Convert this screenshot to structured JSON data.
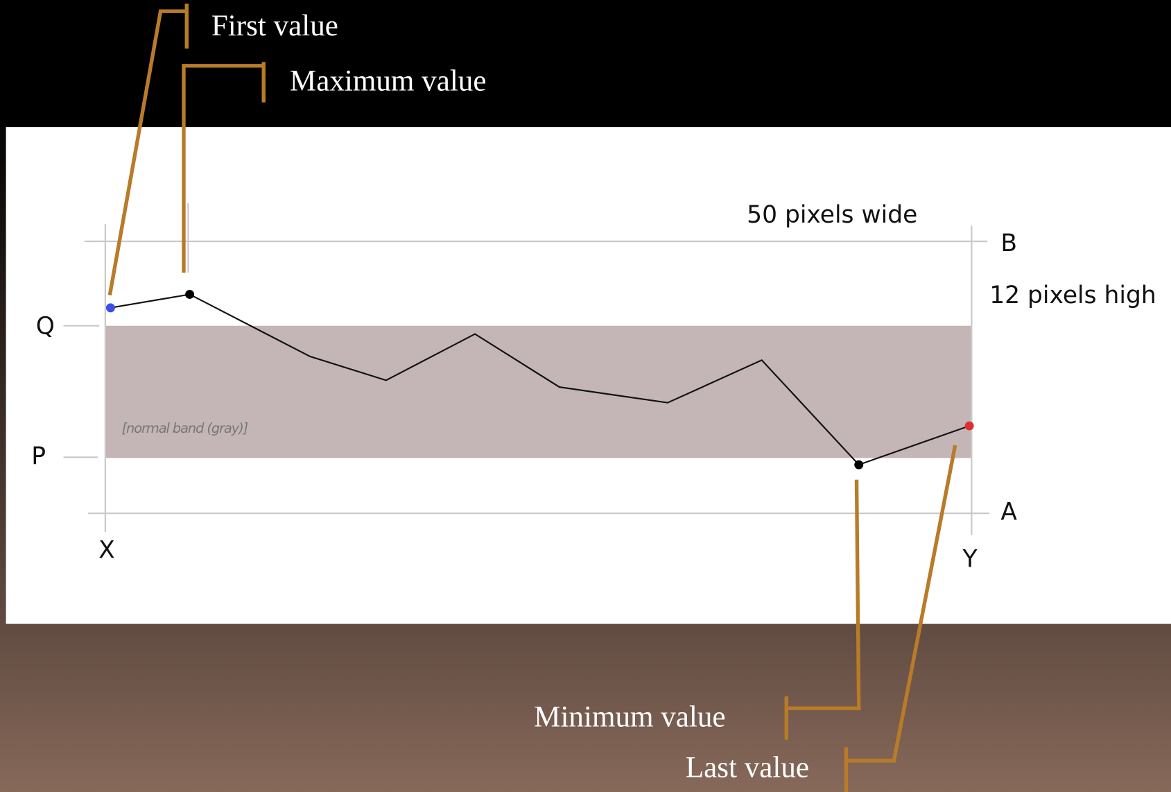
{
  "callouts": {
    "first": "First value",
    "maximum": "Maximum value",
    "minimum": "Minimum value",
    "last": "Last value"
  },
  "dimensions": {
    "width": "50 pixels wide",
    "height": "12 pixels high"
  },
  "axis_labels": {
    "top": "B",
    "bottom": "A",
    "band_top": "Q",
    "band_bottom": "P",
    "left": "X",
    "right": "Y"
  },
  "band_label": "[normal band (gray)]"
}
